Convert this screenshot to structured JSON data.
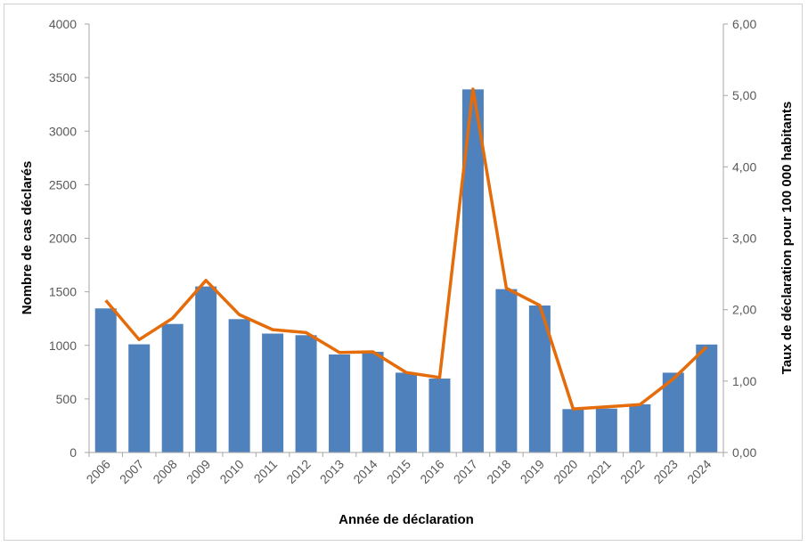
{
  "chart_data": {
    "type": "bar+line",
    "title": "",
    "xlabel": "Année de déclaration",
    "ylabel": "Nombre de cas déclarés",
    "y2label": "Taux de déclaration pour 100 000 habitants",
    "ylim": [
      0,
      4000
    ],
    "y2lim": [
      0,
      6
    ],
    "yticks": [
      "0",
      "500",
      "1000",
      "1500",
      "2000",
      "2500",
      "3000",
      "3500",
      "4000"
    ],
    "y2ticks": [
      "0,00",
      "1,00",
      "2,00",
      "3,00",
      "4,00",
      "5,00",
      "6,00"
    ],
    "grid": false,
    "legend": "none",
    "categories": [
      "2006",
      "2007",
      "2008",
      "2009",
      "2010",
      "2011",
      "2012",
      "2013",
      "2014",
      "2015",
      "2016",
      "2017",
      "2018",
      "2019",
      "2020",
      "2021",
      "2022",
      "2023",
      "2024"
    ],
    "series": [
      {
        "type": "bar",
        "axis": "left",
        "color": "#4f81bd",
        "values": [
          1345,
          1010,
          1200,
          1550,
          1245,
          1110,
          1095,
          915,
          940,
          745,
          690,
          3390,
          1525,
          1372,
          405,
          410,
          450,
          745,
          1008
        ]
      },
      {
        "type": "line",
        "axis": "right",
        "color": "#e46c0a",
        "values": [
          2.13,
          1.58,
          1.88,
          2.41,
          1.93,
          1.72,
          1.68,
          1.4,
          1.41,
          1.12,
          1.05,
          5.09,
          2.3,
          2.06,
          0.61,
          0.64,
          0.67,
          1.03,
          1.48
        ]
      }
    ]
  }
}
